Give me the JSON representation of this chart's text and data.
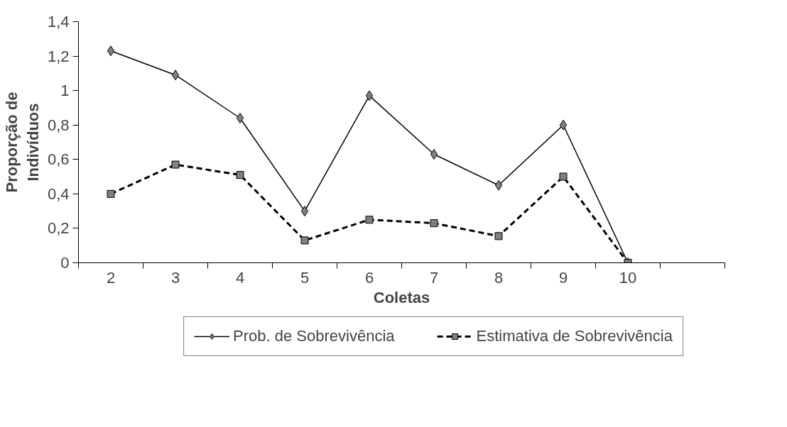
{
  "chart_data": {
    "type": "line",
    "xlabel": "Coletas",
    "ylabel": "Proporção de Indivíduos",
    "categories": [
      "2",
      "3",
      "4",
      "5",
      "6",
      "7",
      "8",
      "9",
      "10",
      null
    ],
    "series": [
      {
        "name": "Prob. de Sobrevivência",
        "color": "#000000",
        "marker": "diamond",
        "line_style": "solid",
        "values": [
          1.23,
          1.09,
          0.84,
          0.3,
          0.97,
          0.63,
          0.45,
          0.8,
          0.0,
          null
        ]
      },
      {
        "name": "Estimativa de Sobrevivência",
        "color": "#000000",
        "marker": "square",
        "line_style": "dashed",
        "values": [
          0.4,
          0.57,
          0.51,
          0.13,
          0.25,
          0.23,
          0.155,
          0.5,
          0.0,
          null
        ]
      }
    ],
    "ylim": [
      0,
      1.4
    ],
    "yticks": [
      0,
      {
        "value": 0.2,
        "label": "0,2"
      },
      {
        "value": 0.4,
        "label": "0,4"
      },
      {
        "value": 0.6,
        "label": "0,6"
      },
      {
        "value": 0.8,
        "label": "0,8"
      },
      1,
      {
        "value": 1.2,
        "label": "1,2"
      },
      {
        "value": 1.4,
        "label": "1,4"
      }
    ],
    "grid": false,
    "legend": "bottom"
  }
}
